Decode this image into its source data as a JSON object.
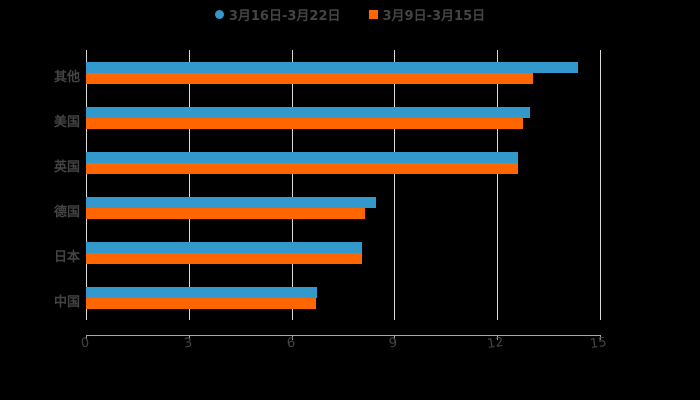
{
  "chart_data": {
    "type": "bar",
    "orientation": "horizontal",
    "title": "",
    "xlabel": "",
    "ylabel": "",
    "categories": [
      "其他",
      "美国",
      "英国",
      "德国",
      "日本",
      "中国"
    ],
    "series": [
      {
        "name": "3月16日-3月22日",
        "color": "#3399cc",
        "values": [
          14.35,
          12.95,
          12.6,
          8.45,
          8.05,
          6.75
        ]
      },
      {
        "name": "3月9日-3月15日",
        "color": "#ff6600",
        "values": [
          13.05,
          12.75,
          12.6,
          8.15,
          8.05,
          6.7
        ]
      }
    ],
    "xlim": [
      0,
      15
    ],
    "xticks": [
      "0",
      "3",
      "6",
      "9",
      "12",
      "15"
    ],
    "grid": true,
    "legend_position": "top"
  },
  "legend": {
    "items": [
      {
        "label": "3月16日-3月22日",
        "color": "#3399cc",
        "marker": "circle"
      },
      {
        "label": "3月9日-3月15日",
        "color": "#ff6600",
        "marker": "square"
      }
    ]
  }
}
